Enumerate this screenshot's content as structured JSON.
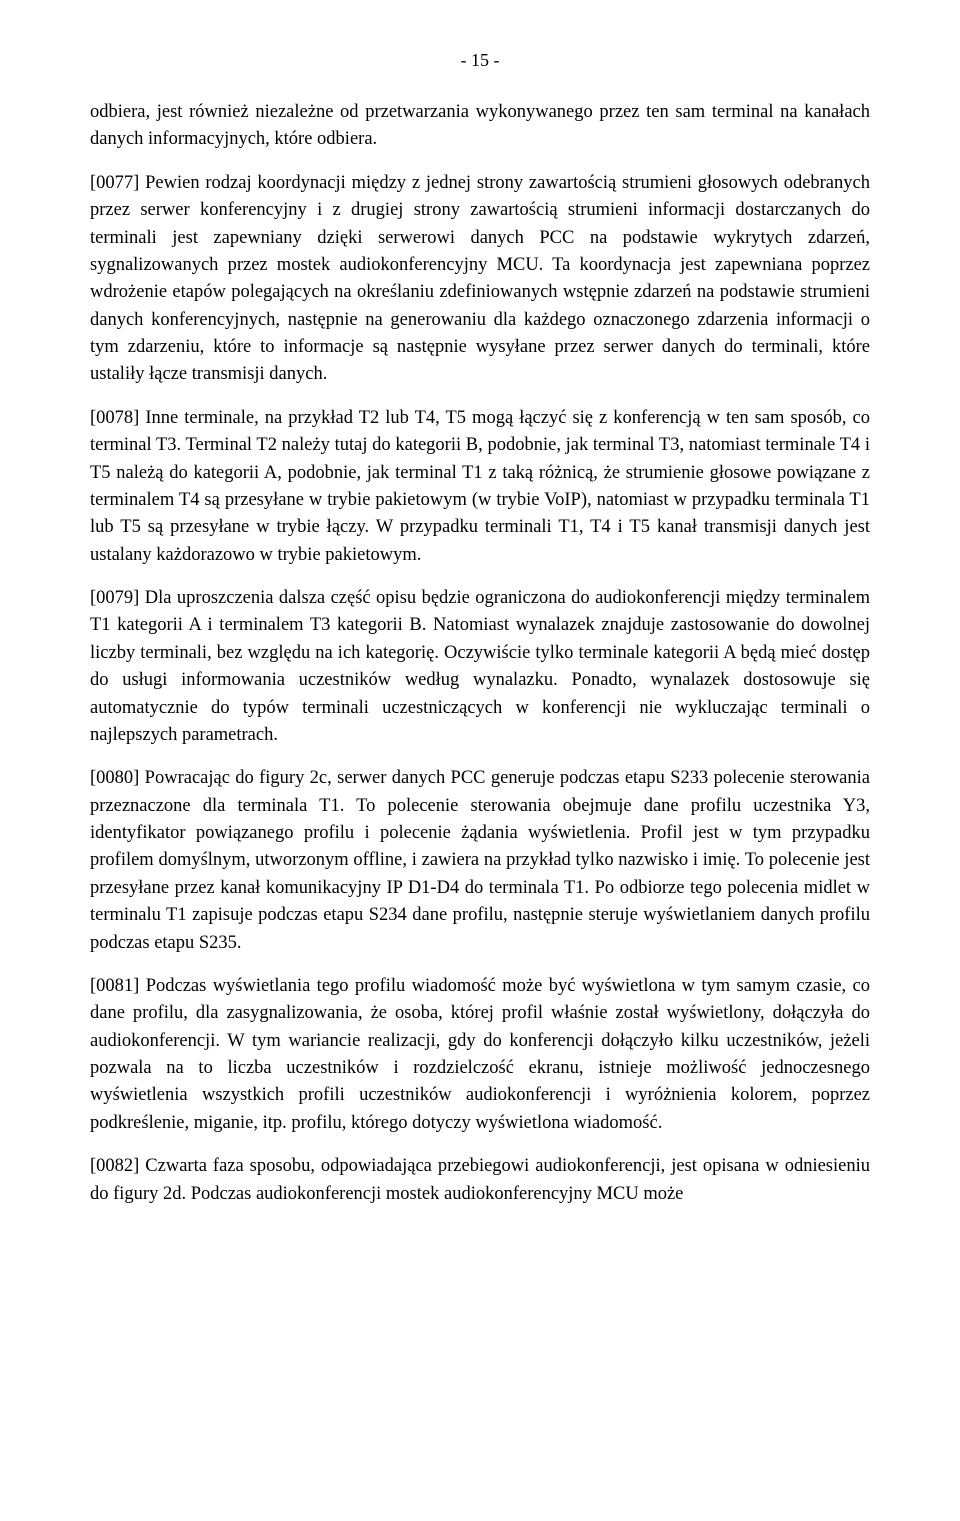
{
  "pageNumber": "- 15 -",
  "paragraphs": [
    "odbiera, jest również niezależne od przetwarzania wykonywanego przez ten sam terminal na kanałach danych informacyjnych, które odbiera.",
    "[0077] Pewien rodzaj koordynacji między z jednej strony zawartością strumieni głosowych odebranych przez serwer konferencyjny i z drugiej strony zawartością strumieni informacji dostarczanych do terminali jest zapewniany dzięki serwerowi danych PCC na podstawie wykrytych zdarzeń, sygnalizowanych przez mostek audiokonferencyjny MCU. Ta koordynacja jest zapewniana poprzez wdrożenie etapów polegających na określaniu zdefiniowanych wstępnie zdarzeń na podstawie strumieni danych konferencyjnych, następnie na generowaniu dla każdego oznaczonego zdarzenia informacji o tym zdarzeniu, które to informacje są następnie wysyłane przez serwer danych do terminali, które ustaliły łącze transmisji danych.",
    "[0078] Inne terminale, na przykład T2 lub T4, T5 mogą łączyć się z konferencją w ten sam sposób, co terminal T3. Terminal T2 należy tutaj do kategorii B, podobnie, jak terminal T3, natomiast terminale T4 i T5 należą do kategorii A, podobnie, jak terminal T1 z taką różnicą, że strumienie głosowe powiązane z terminalem T4 są przesyłane w trybie pakietowym (w trybie VoIP), natomiast w przypadku terminala T1 lub T5 są przesyłane w trybie łączy. W przypadku terminali T1, T4 i T5 kanał transmisji danych jest ustalany każdorazowo w trybie pakietowym.",
    "[0079] Dla uproszczenia dalsza część opisu będzie ograniczona do audiokonferencji między terminalem T1 kategorii A i terminalem T3 kategorii B. Natomiast wynalazek znajduje zastosowanie do dowolnej liczby terminali, bez względu na ich kategorię. Oczywiście tylko terminale kategorii A będą mieć dostęp do usługi informowania uczestników według wynalazku. Ponadto, wynalazek dostosowuje się automatycznie do typów terminali uczestniczących w konferencji nie wykluczając terminali o najlepszych parametrach.",
    "[0080] Powracając do figury 2c, serwer danych PCC generuje podczas etapu S233 polecenie sterowania przeznaczone dla terminala T1. To polecenie sterowania obejmuje dane profilu uczestnika Y3, identyfikator powiązanego profilu i polecenie żądania wyświetlenia. Profil jest w tym przypadku profilem domyślnym, utworzonym offline, i zawiera na przykład tylko nazwisko i imię. To polecenie jest przesyłane przez kanał komunikacyjny IP D1-D4 do terminala T1. Po odbiorze tego polecenia midlet w terminalu T1 zapisuje podczas etapu S234 dane profilu, następnie steruje wyświetlaniem danych profilu podczas etapu S235.",
    "[0081] Podczas wyświetlania tego profilu wiadomość może być wyświetlona w tym samym czasie, co dane profilu, dla zasygnalizowania, że osoba, której profil właśnie został wyświetlony, dołączyła do audiokonferencji. W tym wariancie realizacji, gdy do konferencji dołączyło kilku uczestników, jeżeli pozwala na to liczba uczestników i rozdzielczość ekranu, istnieje możliwość jednoczesnego wyświetlenia wszystkich profili uczestników audiokonferencji i wyróżnienia kolorem, poprzez podkreślenie, miganie, itp. profilu, którego dotyczy wyświetlona wiadomość.",
    "[0082] Czwarta faza sposobu, odpowiadająca przebiegowi audiokonferencji, jest opisana w odniesieniu do figury 2d. Podczas audiokonferencji mostek audiokonferencyjny MCU może"
  ]
}
